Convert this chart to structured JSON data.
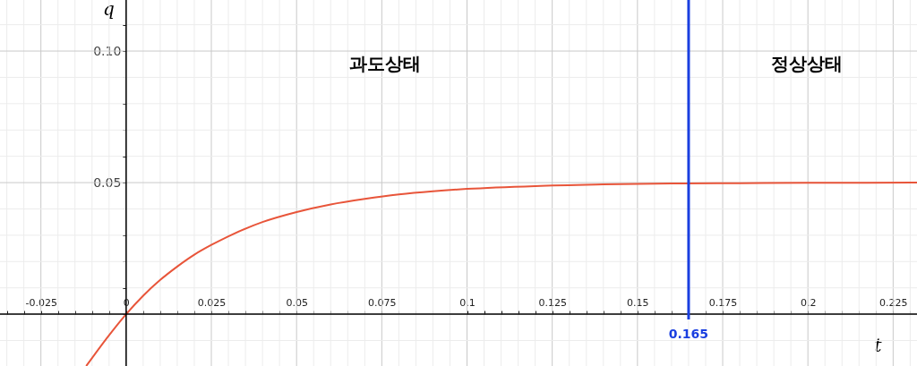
{
  "chart_data": {
    "type": "line",
    "xlabel": "t",
    "ylabel": "q",
    "xlim": [
      -0.037,
      0.232
    ],
    "ylim": [
      -0.0197,
      0.1194
    ],
    "xticks": [
      {
        "value": -0.035,
        "label": null
      },
      {
        "value": -0.03,
        "label": null
      },
      -0.025,
      {
        "value": -0.02,
        "label": null
      },
      {
        "value": -0.015,
        "label": null
      },
      {
        "value": -0.01,
        "label": null
      },
      {
        "value": -0.005,
        "label": null
      },
      0,
      {
        "value": 0.005,
        "label": null
      },
      {
        "value": 0.01,
        "label": null
      },
      {
        "value": 0.015,
        "label": null
      },
      {
        "value": 0.02,
        "label": null
      },
      0.025,
      {
        "value": 0.03,
        "label": null
      },
      {
        "value": 0.035,
        "label": null
      },
      {
        "value": 0.04,
        "label": null
      },
      {
        "value": 0.045,
        "label": null
      },
      0.05,
      {
        "value": 0.055,
        "label": null
      },
      {
        "value": 0.06,
        "label": null
      },
      {
        "value": 0.065,
        "label": null
      },
      {
        "value": 0.07,
        "label": null
      },
      0.075,
      {
        "value": 0.08,
        "label": null
      },
      {
        "value": 0.085,
        "label": null
      },
      {
        "value": 0.09,
        "label": null
      },
      {
        "value": 0.095,
        "label": null
      },
      0.1,
      {
        "value": 0.105,
        "label": null
      },
      {
        "value": 0.11,
        "label": null
      },
      {
        "value": 0.115,
        "label": null
      },
      {
        "value": 0.12,
        "label": null
      },
      0.125,
      {
        "value": 0.13,
        "label": null
      },
      {
        "value": 0.135,
        "label": null
      },
      {
        "value": 0.14,
        "label": null
      },
      {
        "value": 0.145,
        "label": null
      },
      0.15,
      {
        "value": 0.155,
        "label": null
      },
      {
        "value": 0.16,
        "label": null
      },
      {
        "value": 0.165,
        "label": null
      },
      {
        "value": 0.17,
        "label": null
      },
      0.175,
      {
        "value": 0.18,
        "label": null
      },
      {
        "value": 0.185,
        "label": null
      },
      {
        "value": 0.19,
        "label": null
      },
      {
        "value": 0.195,
        "label": null
      },
      0.2,
      {
        "value": 0.205,
        "label": null
      },
      {
        "value": 0.21,
        "label": null
      },
      {
        "value": 0.215,
        "label": null
      },
      {
        "value": 0.22,
        "label": null
      },
      0.225,
      {
        "value": 0.23,
        "label": null
      }
    ],
    "yticks": [
      {
        "value": -0.01,
        "label": null
      },
      {
        "value": 0,
        "label": null
      },
      {
        "value": 0.01,
        "label": null
      },
      {
        "value": 0.02,
        "label": null
      },
      {
        "value": 0.03,
        "label": null
      },
      {
        "value": 0.04,
        "label": null
      },
      0.05,
      {
        "value": 0.06,
        "label": null
      },
      {
        "value": 0.07,
        "label": null
      },
      {
        "value": 0.08,
        "label": null
      },
      {
        "value": 0.09,
        "label": null
      },
      {
        "value": 0.1,
        "label": "0.10"
      },
      {
        "value": 0.11,
        "label": null
      }
    ],
    "grid": true,
    "series": [
      {
        "color": "#e8553a",
        "x": [
          -0.0117,
          -0.005,
          0,
          0.005,
          0.01,
          0.015,
          0.02,
          0.025,
          0.03,
          0.04,
          0.05,
          0.06,
          0.07,
          0.08,
          0.09,
          0.1,
          0.12,
          0.14,
          0.16,
          0.18,
          0.2,
          0.232
        ],
        "values": [
          -0.0197,
          -0.008,
          0,
          0.007,
          0.013,
          0.0181,
          0.0226,
          0.0263,
          0.0296,
          0.035,
          0.0388,
          0.0417,
          0.0438,
          0.0455,
          0.0467,
          0.0476,
          0.0487,
          0.0493,
          0.0497,
          0.0498,
          0.0499,
          0.05
        ]
      }
    ],
    "ref_lines": [
      {
        "axis": "x",
        "value": 0.165,
        "label": "0.165",
        "color": "#1a3fe0"
      }
    ],
    "annotations": [
      "과도상태",
      "정상상태"
    ]
  }
}
